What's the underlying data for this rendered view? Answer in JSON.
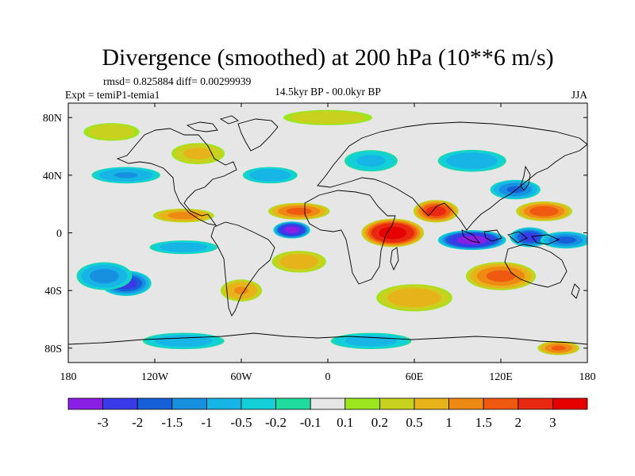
{
  "chart_data": {
    "type": "heatmap",
    "title": "Divergence (smoothed) at 200 hPa (10**6 m/s)",
    "stats_line": "rmsd= 0.825884 diff= 0.00299939",
    "experiment": "Expt = temiP1-temia1",
    "period": "14.5kyr BP - 00.0kyr BP",
    "season": "JJA",
    "x_ticks": [
      "180",
      "120W",
      "60W",
      "0",
      "60E",
      "120E",
      "180"
    ],
    "x_tick_lon": [
      -180,
      -120,
      -60,
      0,
      60,
      120,
      180
    ],
    "y_ticks": [
      "80N",
      "40N",
      "0",
      "40S",
      "80S"
    ],
    "y_tick_lat": [
      80,
      40,
      0,
      -40,
      -80
    ],
    "xlim": [
      -180,
      180
    ],
    "ylim": [
      -90,
      90
    ],
    "colorbar": {
      "labels": [
        "-3",
        "-2",
        "-1.5",
        "-1",
        "-0.5",
        "-0.2",
        "-0.1",
        "0.1",
        "0.2",
        "0.5",
        "1",
        "1.5",
        "2",
        "3"
      ],
      "levels": [
        -3,
        -2,
        -1.5,
        -1,
        -0.5,
        -0.2,
        -0.1,
        0.1,
        0.2,
        0.5,
        1,
        1.5,
        2,
        3
      ],
      "colors": [
        "#8a1fe6",
        "#3a3ae8",
        "#1560d8",
        "#1890e0",
        "#17b4e6",
        "#13d0d8",
        "#1fdc9e",
        "#e6e6e6",
        "#9be61e",
        "#c8d21e",
        "#e6b41a",
        "#ee8a14",
        "#f05a10",
        "#e82810",
        "#e60000"
      ]
    },
    "features": [
      {
        "lon": -25,
        "lat": 2,
        "value": -3.2,
        "rlon": 13,
        "rlat": 6
      },
      {
        "lon": 100,
        "lat": -5,
        "value": -3.3,
        "rlon": 24,
        "rlat": 7
      },
      {
        "lon": 140,
        "lat": -3,
        "value": -2.2,
        "rlon": 14,
        "rlat": 7
      },
      {
        "lon": 165,
        "lat": -5,
        "value": -1.6,
        "rlon": 18,
        "rlat": 6
      },
      {
        "lon": 45,
        "lat": 0,
        "value": 3.3,
        "rlon": 22,
        "rlat": 10
      },
      {
        "lon": 75,
        "lat": 15,
        "value": 2.2,
        "rlon": 16,
        "rlat": 8
      },
      {
        "lon": 150,
        "lat": 15,
        "value": 1.8,
        "rlon": 20,
        "rlat": 7
      },
      {
        "lon": 120,
        "lat": -30,
        "value": 1.6,
        "rlon": 25,
        "rlat": 10
      },
      {
        "lon": -20,
        "lat": 15,
        "value": 1.6,
        "rlon": 22,
        "rlat": 6
      },
      {
        "lon": -100,
        "lat": 12,
        "value": 1.2,
        "rlon": 22,
        "rlat": 5
      },
      {
        "lon": -140,
        "lat": -35,
        "value": -2.2,
        "rlon": 18,
        "rlat": 9
      },
      {
        "lon": -155,
        "lat": -30,
        "value": -1.2,
        "rlon": 20,
        "rlat": 10
      },
      {
        "lon": -60,
        "lat": -40,
        "value": 1.0,
        "rlon": 15,
        "rlat": 8
      },
      {
        "lon": 60,
        "lat": -45,
        "value": 0.8,
        "rlon": 28,
        "rlat": 10
      },
      {
        "lon": 130,
        "lat": 30,
        "value": -1.5,
        "rlon": 18,
        "rlat": 7
      },
      {
        "lon": 100,
        "lat": 50,
        "value": -0.9,
        "rlon": 25,
        "rlat": 8
      },
      {
        "lon": -140,
        "lat": 40,
        "value": -1.0,
        "rlon": 25,
        "rlat": 6
      },
      {
        "lon": -40,
        "lat": 40,
        "value": -0.9,
        "rlon": 20,
        "rlat": 6
      },
      {
        "lon": -90,
        "lat": 55,
        "value": 0.6,
        "rlon": 20,
        "rlat": 8
      },
      {
        "lon": -150,
        "lat": 70,
        "value": 0.4,
        "rlon": 22,
        "rlat": 7
      },
      {
        "lon": 30,
        "lat": 50,
        "value": -0.6,
        "rlon": 20,
        "rlat": 8
      },
      {
        "lon": -20,
        "lat": -20,
        "value": 0.8,
        "rlon": 20,
        "rlat": 8
      },
      {
        "lon": -100,
        "lat": -10,
        "value": -0.8,
        "rlon": 25,
        "rlat": 5
      },
      {
        "lon": 160,
        "lat": -80,
        "value": 1.5,
        "rlon": 15,
        "rlat": 5
      },
      {
        "lon": -100,
        "lat": -75,
        "value": -0.8,
        "rlon": 30,
        "rlat": 6
      },
      {
        "lon": 30,
        "lat": -75,
        "value": -0.7,
        "rlon": 30,
        "rlat": 6
      },
      {
        "lon": 0,
        "lat": 80,
        "value": 0.4,
        "rlon": 35,
        "rlat": 6
      }
    ]
  }
}
